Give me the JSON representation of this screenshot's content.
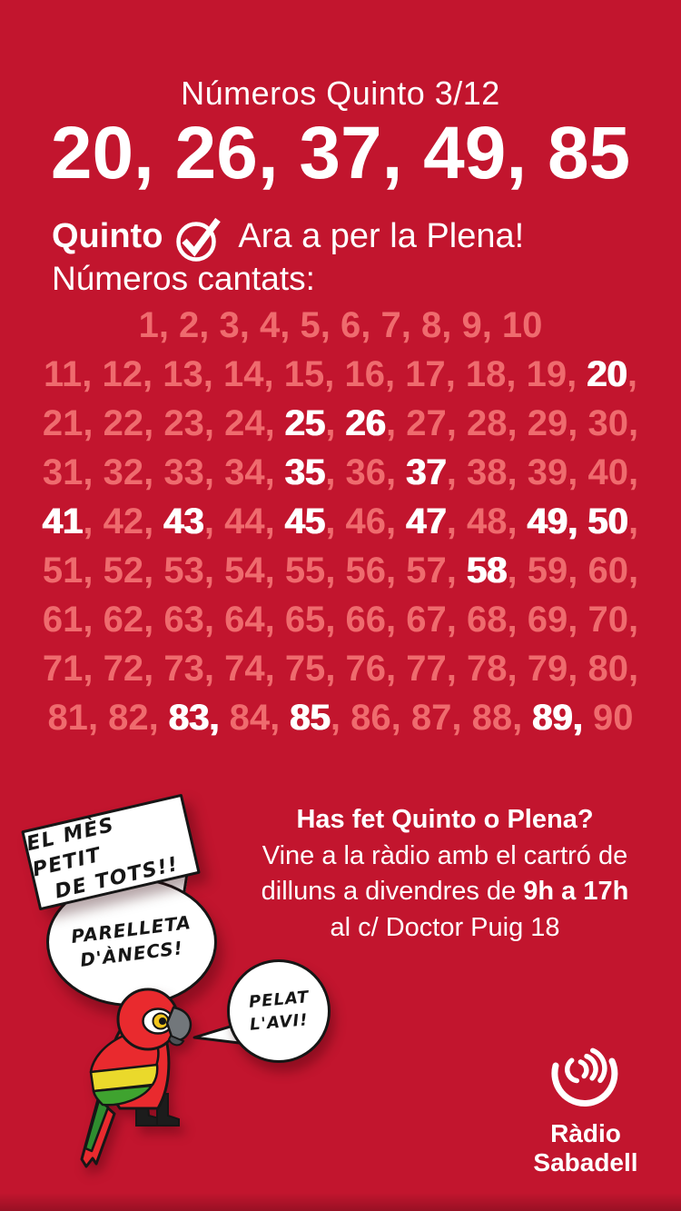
{
  "colors": {
    "background": "#c2152e",
    "number_dim": "#ef6b6e",
    "number_called": "#ffffff",
    "parrot_red": "#e92a2e",
    "parrot_yellow": "#ead92b",
    "parrot_green": "#3fa32f"
  },
  "header": {
    "title": "Números Quinto 3/12",
    "quinto_numbers": "20, 26, 37, 49, 85",
    "status_prefix": "Quinto",
    "status_icon": "check-circle-icon",
    "status_text": "Ara a per la Plena!",
    "called_label": "Números cantats:"
  },
  "grid": {
    "rows": [
      {
        "numbers": [
          1,
          2,
          3,
          4,
          5,
          6,
          7,
          8,
          9,
          10
        ],
        "trailing_comma": false
      },
      {
        "numbers": [
          11,
          12,
          13,
          14,
          15,
          16,
          17,
          18,
          19,
          20
        ],
        "trailing_comma": true
      },
      {
        "numbers": [
          21,
          22,
          23,
          24,
          25,
          26,
          27,
          28,
          29,
          30
        ],
        "trailing_comma": true
      },
      {
        "numbers": [
          31,
          32,
          33,
          34,
          35,
          36,
          37,
          38,
          39,
          40
        ],
        "trailing_comma": true
      },
      {
        "numbers": [
          41,
          42,
          43,
          44,
          45,
          46,
          47,
          48,
          49,
          50
        ],
        "trailing_comma": true
      },
      {
        "numbers": [
          51,
          52,
          53,
          54,
          55,
          56,
          57,
          58,
          59,
          60
        ],
        "trailing_comma": true
      },
      {
        "numbers": [
          61,
          62,
          63,
          64,
          65,
          66,
          67,
          68,
          69,
          70
        ],
        "trailing_comma": true
      },
      {
        "numbers": [
          71,
          72,
          73,
          74,
          75,
          76,
          77,
          78,
          79,
          80
        ],
        "trailing_comma": true
      },
      {
        "numbers": [
          81,
          82,
          83,
          84,
          85,
          86,
          87,
          88,
          89,
          90
        ],
        "trailing_comma": false
      }
    ],
    "called": [
      20,
      25,
      26,
      35,
      37,
      41,
      43,
      45,
      47,
      49,
      50,
      58,
      83,
      85,
      89
    ],
    "white_comma_after": [
      49,
      83,
      89
    ]
  },
  "info": {
    "heading": "Has fet Quinto o Plena?",
    "line1": "Vine a la ràdio amb el cartró de",
    "line2_prefix": "dilluns a divendres de ",
    "line2_bold": "9h a 17h",
    "line3": "al c/ Doctor Puig 18"
  },
  "mascot": {
    "parrot_icon": "parrot-mascot",
    "sign": {
      "line1": "El mès petit",
      "line2": "de tots!!"
    },
    "bubble_ellipse": {
      "line1": "Parelleta",
      "line2": "d'ànecs!"
    },
    "bubble_circle": {
      "line1": "Pelat",
      "line2": "l'avi!"
    }
  },
  "logo": {
    "icon": "radio-waves-icon",
    "line1": "Ràdio",
    "line2": "Sabadell"
  }
}
